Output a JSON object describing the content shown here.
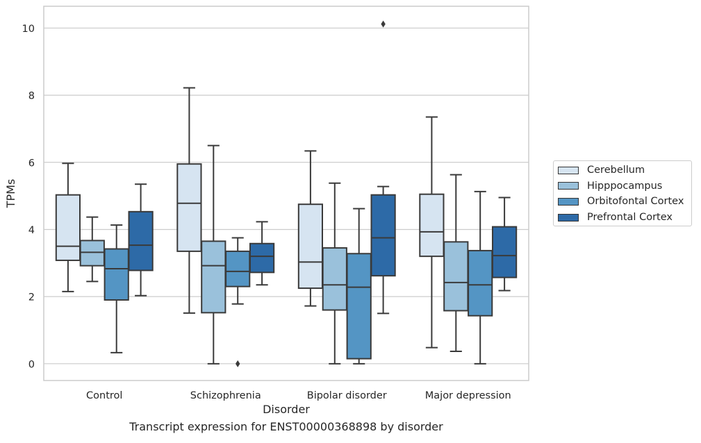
{
  "chart_data": {
    "type": "box",
    "caption": "Transcript expression for ENST00000368898 by disorder",
    "xlabel": "Disorder",
    "ylabel": "TPMs",
    "ylim": [
      -0.5,
      10.65
    ],
    "yticks": [
      0,
      2,
      4,
      6,
      8,
      10
    ],
    "categories": [
      "Control",
      "Schizophrenia",
      "Bipolar disorder",
      "Major depression"
    ],
    "legend_position": "center-right",
    "grid": true,
    "series": [
      {
        "name": "Cerebellum",
        "color": "#d6e4f1",
        "boxes": [
          {
            "whislo": 2.15,
            "q1": 3.08,
            "median": 3.5,
            "q3": 5.03,
            "whishi": 5.97,
            "fliers": []
          },
          {
            "whislo": 1.51,
            "q1": 3.35,
            "median": 4.78,
            "q3": 5.95,
            "whishi": 8.22,
            "fliers": []
          },
          {
            "whislo": 1.72,
            "q1": 2.25,
            "median": 3.03,
            "q3": 4.75,
            "whishi": 6.34,
            "fliers": []
          },
          {
            "whislo": 0.48,
            "q1": 3.2,
            "median": 3.93,
            "q3": 5.05,
            "whishi": 7.35,
            "fliers": []
          }
        ]
      },
      {
        "name": "Hipppocampus",
        "color": "#9ac1db",
        "boxes": [
          {
            "whislo": 2.45,
            "q1": 2.92,
            "median": 3.32,
            "q3": 3.67,
            "whishi": 4.37,
            "fliers": []
          },
          {
            "whislo": 0.0,
            "q1": 1.52,
            "median": 2.92,
            "q3": 3.65,
            "whishi": 6.5,
            "fliers": []
          },
          {
            "whislo": 0.0,
            "q1": 1.6,
            "median": 2.35,
            "q3": 3.45,
            "whishi": 5.38,
            "fliers": []
          },
          {
            "whislo": 0.37,
            "q1": 1.58,
            "median": 2.42,
            "q3": 3.63,
            "whishi": 5.63,
            "fliers": []
          }
        ]
      },
      {
        "name": "Orbitofontal Cortex",
        "color": "#5495c4",
        "boxes": [
          {
            "whislo": 0.33,
            "q1": 1.9,
            "median": 2.83,
            "q3": 3.42,
            "whishi": 4.13,
            "fliers": []
          },
          {
            "whislo": 1.78,
            "q1": 2.3,
            "median": 2.75,
            "q3": 3.35,
            "whishi": 3.75,
            "fliers": [
              0.0
            ]
          },
          {
            "whislo": 0.0,
            "q1": 0.15,
            "median": 2.28,
            "q3": 3.28,
            "whishi": 4.62,
            "fliers": []
          },
          {
            "whislo": 0.0,
            "q1": 1.43,
            "median": 2.35,
            "q3": 3.37,
            "whishi": 5.13,
            "fliers": []
          }
        ]
      },
      {
        "name": "Prefrontal Cortex",
        "color": "#2d6aa7",
        "boxes": [
          {
            "whislo": 2.03,
            "q1": 2.78,
            "median": 3.53,
            "q3": 4.53,
            "whishi": 5.35,
            "fliers": []
          },
          {
            "whislo": 2.35,
            "q1": 2.72,
            "median": 3.2,
            "q3": 3.58,
            "whishi": 4.23,
            "fliers": []
          },
          {
            "whislo": 1.5,
            "q1": 2.62,
            "median": 3.75,
            "q3": 5.03,
            "whishi": 5.28,
            "fliers": [
              10.12
            ]
          },
          {
            "whislo": 2.18,
            "q1": 2.57,
            "median": 3.22,
            "q3": 4.08,
            "whishi": 4.95,
            "fliers": []
          }
        ]
      }
    ]
  }
}
